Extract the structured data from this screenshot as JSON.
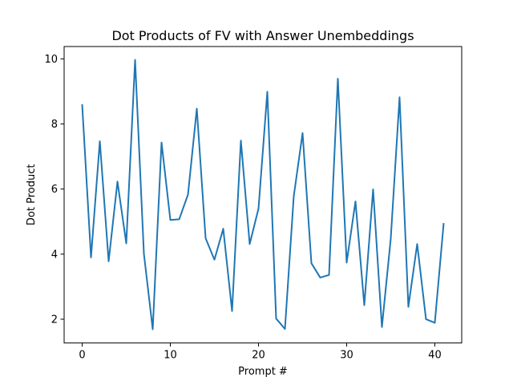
{
  "chart_data": {
    "type": "line",
    "title": "Dot Products of FV with Answer Unembeddings",
    "xlabel": "Prompt #",
    "ylabel": "Dot Product",
    "xlim": [
      -2.05,
      43.05
    ],
    "ylim": [
      1.27,
      10.38
    ],
    "xticks": [
      0,
      10,
      20,
      30,
      40
    ],
    "yticks": [
      2,
      4,
      6,
      8,
      10
    ],
    "grid": false,
    "legend": "none",
    "series": [
      {
        "color": "#1f77b4",
        "x": [
          0,
          1,
          2,
          3,
          4,
          5,
          6,
          7,
          8,
          9,
          10,
          11,
          12,
          13,
          14,
          15,
          16,
          17,
          18,
          19,
          20,
          21,
          22,
          23,
          24,
          25,
          26,
          27,
          28,
          29,
          30,
          31,
          32,
          33,
          34,
          35,
          36,
          37,
          38,
          39,
          40,
          41
        ],
        "values": [
          8.58,
          3.9,
          7.47,
          3.78,
          6.23,
          4.33,
          9.97,
          4.01,
          1.69,
          7.43,
          5.05,
          5.07,
          5.83,
          8.47,
          4.49,
          3.83,
          4.78,
          2.25,
          7.49,
          4.31,
          5.4,
          8.99,
          2.02,
          1.7,
          5.78,
          7.72,
          3.72,
          3.28,
          3.36,
          9.39,
          3.74,
          5.62,
          2.43,
          5.99,
          1.76,
          4.47,
          8.82,
          2.38,
          4.31,
          2.0,
          1.89,
          4.93
        ]
      }
    ]
  }
}
